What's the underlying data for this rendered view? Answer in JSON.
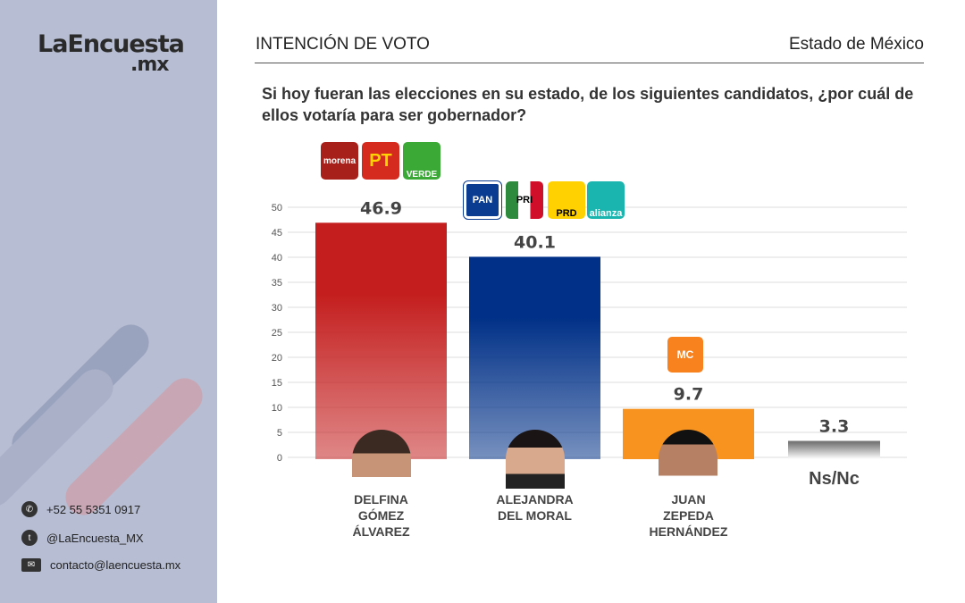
{
  "brand": {
    "name": "LaEncuesta",
    "suffix": ".mx"
  },
  "header": {
    "title": "INTENCIÓN DE VOTO",
    "region": "Estado de México"
  },
  "question": "Si hoy fueran las elecciones en su estado, de los siguientes candidatos, ¿por cuál de ellos votaría para ser gobernador?",
  "contacts": [
    {
      "icon": "whatsapp-icon",
      "text": "+52 55 5351 0917"
    },
    {
      "icon": "twitter-icon",
      "text": "@LaEncuesta_MX"
    },
    {
      "icon": "mail-icon",
      "text": "contacto@laencuesta.mx"
    }
  ],
  "party_logos": {
    "delfina": [
      "morena",
      "PT",
      "VERDE"
    ],
    "alejandra": [
      "PAN",
      "PRI",
      "PRD",
      "alianza"
    ],
    "juan": [
      "MC"
    ]
  },
  "chart_data": {
    "type": "bar",
    "title": "",
    "xlabel": "",
    "ylabel": "",
    "ylim": [
      0,
      50
    ],
    "yticks": [
      0,
      5,
      10,
      15,
      20,
      25,
      30,
      35,
      40,
      45,
      50
    ],
    "grid": true,
    "categories": [
      "DELFINA GÓMEZ ÁLVAREZ",
      "ALEJANDRA DEL MORAL",
      "JUAN ZEPEDA HERNÁNDEZ",
      "Ns/Nc"
    ],
    "category_lines": [
      [
        "DELFINA",
        "GÓMEZ",
        "ÁLVAREZ"
      ],
      [
        "ALEJANDRA",
        "DEL MORAL"
      ],
      [
        "JUAN",
        "ZEPEDA",
        "HERNÁNDEZ"
      ],
      [
        "Ns/Nc"
      ]
    ],
    "values": [
      46.9,
      40.1,
      9.7,
      3.3
    ],
    "labels": [
      "46.9",
      "40.1",
      "9.7",
      "3.3"
    ],
    "colors": [
      "#c41e1e",
      "#003087",
      "#f7931e",
      "#777777"
    ]
  }
}
